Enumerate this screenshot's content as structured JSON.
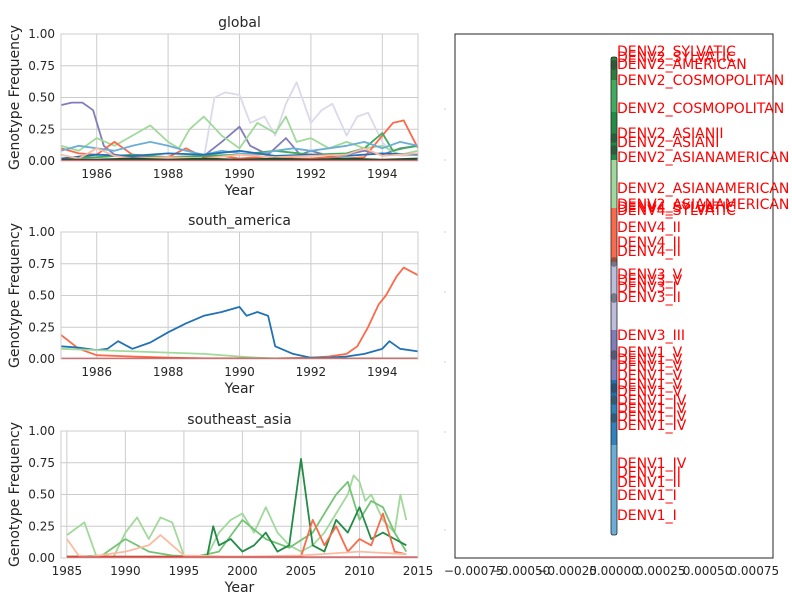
{
  "chart_data": [
    {
      "type": "line",
      "title": "global",
      "xlabel": "Year",
      "ylabel": "Genotype Frequency",
      "xlim": [
        1985,
        1995
      ],
      "ylim": [
        0,
        1
      ],
      "xticks": [
        1986,
        1988,
        1990,
        1992,
        1994
      ],
      "yticks": [
        0,
        0.25,
        0.5,
        0.75,
        1.0
      ],
      "xtick_labels": [
        "1986",
        "1988",
        "1990",
        "1992",
        "1994"
      ],
      "ytick_labels": [
        "0.00",
        "0.25",
        "0.50",
        "0.75",
        "1.00"
      ],
      "grid": true,
      "series": [
        {
          "color": "#dadaeb",
          "x": [
            1985,
            1989,
            1989.3,
            1989.6,
            1990,
            1990.3,
            1990.7,
            1991,
            1991.3,
            1991.6,
            1992,
            1992.3,
            1992.6,
            1993,
            1993.3,
            1993.6,
            1994,
            1994.3,
            1994.6,
            1995
          ],
          "y": [
            0.02,
            0.02,
            0.5,
            0.54,
            0.52,
            0.3,
            0.35,
            0.2,
            0.45,
            0.62,
            0.3,
            0.4,
            0.45,
            0.2,
            0.35,
            0.38,
            0.15,
            0.05,
            0.04,
            0.05
          ]
        },
        {
          "color": "#807dba",
          "x": [
            1985,
            1985.3,
            1985.6,
            1985.9,
            1986.2,
            1986.5,
            1987,
            1988,
            1989,
            1989.5,
            1990,
            1990.3,
            1990.8,
            1991.3,
            1991.7,
            1992,
            1992.5,
            1993,
            1993.5,
            1994,
            1994.5,
            1995
          ],
          "y": [
            0.44,
            0.46,
            0.46,
            0.4,
            0.12,
            0.05,
            0.03,
            0.03,
            0.04,
            0.15,
            0.27,
            0.12,
            0.05,
            0.18,
            0.05,
            0.08,
            0.04,
            0.05,
            0.08,
            0.05,
            0.1,
            0.12
          ]
        },
        {
          "color": "#a1d99b",
          "x": [
            1985,
            1985.5,
            1986,
            1986.5,
            1987,
            1987.5,
            1988,
            1988.3,
            1988.6,
            1989,
            1989.5,
            1990,
            1990.5,
            1991,
            1991.3,
            1991.6,
            1992,
            1992.5,
            1993,
            1993.5,
            1994,
            1994.5,
            1995
          ],
          "y": [
            0.12,
            0.08,
            0.18,
            0.12,
            0.2,
            0.28,
            0.15,
            0.1,
            0.25,
            0.35,
            0.2,
            0.1,
            0.3,
            0.22,
            0.35,
            0.15,
            0.18,
            0.1,
            0.15,
            0.1,
            0.12,
            0.05,
            0.08
          ]
        },
        {
          "color": "#fb6a4a",
          "x": [
            1985,
            1985.5,
            1986,
            1986.5,
            1987,
            1987.5,
            1988,
            1988.5,
            1989,
            1989.5,
            1990,
            1990.5,
            1991,
            1991.5,
            1992,
            1992.5,
            1993,
            1993.5,
            1994,
            1994.3,
            1994.6,
            1995
          ],
          "y": [
            0.1,
            0.06,
            0.05,
            0.15,
            0.05,
            0.04,
            0.03,
            0.1,
            0.03,
            0.04,
            0.02,
            0.03,
            0.04,
            0.02,
            0.02,
            0.03,
            0.02,
            0.03,
            0.2,
            0.3,
            0.32,
            0.1
          ]
        },
        {
          "color": "#41ab5d",
          "x": [
            1985,
            1986,
            1987,
            1988,
            1989,
            1990,
            1991,
            1992,
            1993,
            1993.5,
            1994,
            1994.3,
            1994.6,
            1995
          ],
          "y": [
            0.02,
            0.03,
            0.05,
            0.03,
            0.04,
            0.05,
            0.08,
            0.05,
            0.06,
            0.1,
            0.22,
            0.08,
            0.1,
            0.12
          ]
        },
        {
          "color": "#6baed6",
          "x": [
            1985,
            1985.5,
            1986,
            1986.5,
            1987,
            1987.5,
            1988,
            1988.5,
            1989,
            1989.5,
            1990,
            1990.5,
            1991,
            1991.5,
            1992,
            1992.5,
            1993,
            1993.5,
            1994,
            1994.5,
            1995
          ],
          "y": [
            0.08,
            0.12,
            0.1,
            0.08,
            0.12,
            0.15,
            0.12,
            0.08,
            0.05,
            0.08,
            0.06,
            0.05,
            0.08,
            0.1,
            0.08,
            0.1,
            0.12,
            0.15,
            0.1,
            0.15,
            0.12
          ]
        },
        {
          "color": "#2171b5",
          "x": [
            1985,
            1986,
            1987,
            1988,
            1989,
            1990,
            1991,
            1992,
            1993,
            1994,
            1995
          ],
          "y": [
            0.02,
            0.05,
            0.04,
            0.06,
            0.05,
            0.08,
            0.04,
            0.05,
            0.04,
            0.06,
            0.05
          ]
        },
        {
          "color": "#fcbba1",
          "x": [
            1985,
            1985.5,
            1986,
            1986.5,
            1987,
            1988,
            1989,
            1990,
            1991,
            1992,
            1993,
            1993.5,
            1994,
            1995
          ],
          "y": [
            0.05,
            0.02,
            0.1,
            0.04,
            0.02,
            0.03,
            0.02,
            0.05,
            0.03,
            0.04,
            0.05,
            0.1,
            0.04,
            0.06
          ]
        },
        {
          "color": "#005a32",
          "x": [
            1985,
            1986,
            1987,
            1988,
            1989,
            1990,
            1991,
            1992,
            1993,
            1994,
            1995
          ],
          "y": [
            0.01,
            0.01,
            0.02,
            0.01,
            0.02,
            0.01,
            0.02,
            0.01,
            0.02,
            0.01,
            0.02
          ]
        },
        {
          "color": "#cb181d",
          "x": [
            1985,
            1995
          ],
          "y": [
            0.005,
            0.005
          ]
        }
      ]
    },
    {
      "type": "line",
      "title": "south_america",
      "xlabel": "Year",
      "ylabel": "Genotype Frequency",
      "xlim": [
        1985,
        1995
      ],
      "ylim": [
        0,
        1
      ],
      "xticks": [
        1986,
        1988,
        1990,
        1992,
        1994
      ],
      "yticks": [
        0,
        0.25,
        0.5,
        0.75,
        1.0
      ],
      "xtick_labels": [
        "1986",
        "1988",
        "1990",
        "1992",
        "1994"
      ],
      "ytick_labels": [
        "0.00",
        "0.25",
        "0.50",
        "0.75",
        "1.00"
      ],
      "grid": true,
      "series": [
        {
          "color": "#fb6a4a",
          "x": [
            1985,
            1985.5,
            1986,
            1987,
            1988,
            1989,
            1990,
            1991,
            1992,
            1992.5,
            1993,
            1993.3,
            1993.6,
            1993.9,
            1994.1,
            1994.4,
            1994.6,
            1995
          ],
          "y": [
            0.19,
            0.08,
            0.03,
            0.02,
            0.01,
            0.005,
            0.005,
            0.005,
            0.01,
            0.02,
            0.04,
            0.1,
            0.25,
            0.43,
            0.5,
            0.65,
            0.72,
            0.66
          ]
        },
        {
          "color": "#2171b5",
          "x": [
            1985,
            1985.5,
            1986,
            1986.3,
            1986.6,
            1987,
            1987.5,
            1988,
            1988.5,
            1989,
            1989.5,
            1990,
            1990.2,
            1990.5,
            1990.8,
            1991,
            1991.5,
            1992,
            1992.5,
            1993,
            1993.5,
            1994,
            1994.2,
            1994.5,
            1995
          ],
          "y": [
            0.1,
            0.09,
            0.07,
            0.08,
            0.14,
            0.08,
            0.13,
            0.21,
            0.28,
            0.34,
            0.37,
            0.41,
            0.34,
            0.37,
            0.34,
            0.1,
            0.04,
            0.01,
            0.01,
            0.02,
            0.04,
            0.08,
            0.14,
            0.08,
            0.06
          ]
        },
        {
          "color": "#a1d99b",
          "x": [
            1985,
            1986,
            1987,
            1988,
            1989,
            1990,
            1990.5,
            1991,
            1992,
            1993,
            1994,
            1995
          ],
          "y": [
            0.08,
            0.07,
            0.06,
            0.05,
            0.04,
            0.02,
            0.01,
            0.005,
            0.005,
            0.005,
            0.005,
            0.005
          ]
        },
        {
          "color": "#cb181d",
          "x": [
            1985,
            1995
          ],
          "y": [
            0.003,
            0.003
          ]
        }
      ]
    },
    {
      "type": "line",
      "title": "southeast_asia",
      "xlabel": "Year",
      "ylabel": "Genotype Frequency",
      "xlim": [
        1984.5,
        2015
      ],
      "ylim": [
        0,
        1
      ],
      "xticks": [
        1985,
        1990,
        1995,
        2000,
        2005,
        2010,
        2015
      ],
      "yticks": [
        0,
        0.25,
        0.5,
        0.75,
        1.0
      ],
      "xtick_labels": [
        "1985",
        "1990",
        "1995",
        "2000",
        "2005",
        "2010",
        "2015"
      ],
      "ytick_labels": [
        "0.00",
        "0.25",
        "0.50",
        "0.75",
        "1.00"
      ],
      "grid": true,
      "series": [
        {
          "color": "#a1d99b",
          "x": [
            1985,
            1986.5,
            1987.5,
            1989,
            1990,
            1991,
            1992,
            1993,
            1994,
            1995,
            1996,
            1997,
            1998,
            1999,
            2000,
            2001,
            2002,
            2003,
            2004,
            2005,
            2006,
            2007,
            2008,
            2009,
            2009.5,
            2010,
            2010.5,
            2011,
            2012,
            2013,
            2013.5,
            2014
          ],
          "y": [
            0.18,
            0.28,
            0.02,
            0.01,
            0.2,
            0.32,
            0.15,
            0.32,
            0.28,
            0.02,
            0.01,
            0.02,
            0.2,
            0.3,
            0.35,
            0.2,
            0.4,
            0.2,
            0.1,
            0.05,
            0.1,
            0.2,
            0.35,
            0.5,
            0.65,
            0.6,
            0.45,
            0.5,
            0.3,
            0.2,
            0.5,
            0.3
          ]
        },
        {
          "color": "#74c476",
          "x": [
            1985,
            1988,
            1990,
            1992,
            1994,
            1996,
            1998,
            2000,
            2002,
            2004,
            2006,
            2008,
            2009,
            2010,
            2011,
            2012,
            2013,
            2014
          ],
          "y": [
            0.01,
            0.02,
            0.15,
            0.05,
            0.02,
            0.01,
            0.05,
            0.3,
            0.15,
            0.08,
            0.2,
            0.5,
            0.6,
            0.3,
            0.45,
            0.4,
            0.2,
            0.05
          ]
        },
        {
          "color": "#238b45",
          "x": [
            1985,
            1995,
            1997,
            1997.5,
            1998,
            1999,
            2000,
            2001,
            2002,
            2003,
            2004,
            2005,
            2006,
            2007,
            2008,
            2009,
            2010,
            2011,
            2012,
            2013,
            2014
          ],
          "y": [
            0.01,
            0.01,
            0.02,
            0.25,
            0.1,
            0.15,
            0.05,
            0.1,
            0.2,
            0.05,
            0.1,
            0.78,
            0.1,
            0.05,
            0.3,
            0.2,
            0.4,
            0.15,
            0.2,
            0.15,
            0.1
          ]
        },
        {
          "color": "#fb6a4a",
          "x": [
            1985,
            2005,
            2006,
            2007,
            2008,
            2009,
            2010,
            2011,
            2012,
            2013,
            2014
          ],
          "y": [
            0.01,
            0.01,
            0.3,
            0.1,
            0.25,
            0.05,
            0.15,
            0.1,
            0.35,
            0.05,
            0.03
          ]
        },
        {
          "color": "#fcbba1",
          "x": [
            1985,
            1986,
            1987,
            1990,
            1992,
            1993,
            1995,
            2000,
            2005,
            2010,
            2014
          ],
          "y": [
            0.15,
            0.02,
            0.01,
            0.05,
            0.1,
            0.18,
            0.02,
            0.01,
            0.02,
            0.05,
            0.03
          ]
        },
        {
          "color": "#cb181d",
          "x": [
            1985,
            2015
          ],
          "y": [
            0.005,
            0.005
          ]
        }
      ]
    },
    {
      "type": "scatter",
      "title": "",
      "xlim": [
        -0.00085,
        0.00085
      ],
      "xticks": [
        -0.00075,
        -0.0005,
        -0.00025,
        0,
        0.00025,
        0.0005,
        0.00075
      ],
      "xtick_labels": [
        "−0.00075",
        "−0.00050",
        "−0.00025",
        "0.00000",
        "0.00025",
        "0.00050",
        "0.00075"
      ],
      "grid": false,
      "tip_labels": [
        "DENV2_SYLVATIC",
        "DENV2_SYLVATIC",
        "DENV2_AMERICAN",
        "DENV2_COSMOPOLITAN",
        "DENV2_COSMOPOLITAN",
        "DENV2_ASIANII",
        "DENV2_ASIANI",
        "DENV2_ASIANAMERICAN",
        "DENV2_ASIANAMERICAN",
        "DENV2_ASIANAMERICAN",
        "DENV4_SYLVATIC",
        "DENV4_SYLVATIC",
        "DENV4_II",
        "DENV4_II",
        "DENV4_II",
        "DENV3_V",
        "DENV3_V",
        "DENV3_I",
        "DENV3_II",
        "DENV3_III",
        "DENV1_V",
        "DENV1_V",
        "DENV1_V",
        "DENV1_V",
        "DENV1_V",
        "DENV1_V",
        "DENV1_IV",
        "DENV1_IV",
        "DENV1_IV",
        "DENV1_IV",
        "DENV1_IV",
        "DENV1_II",
        "DENV1_II",
        "DENV1_I",
        "DENV1_I"
      ]
    }
  ]
}
